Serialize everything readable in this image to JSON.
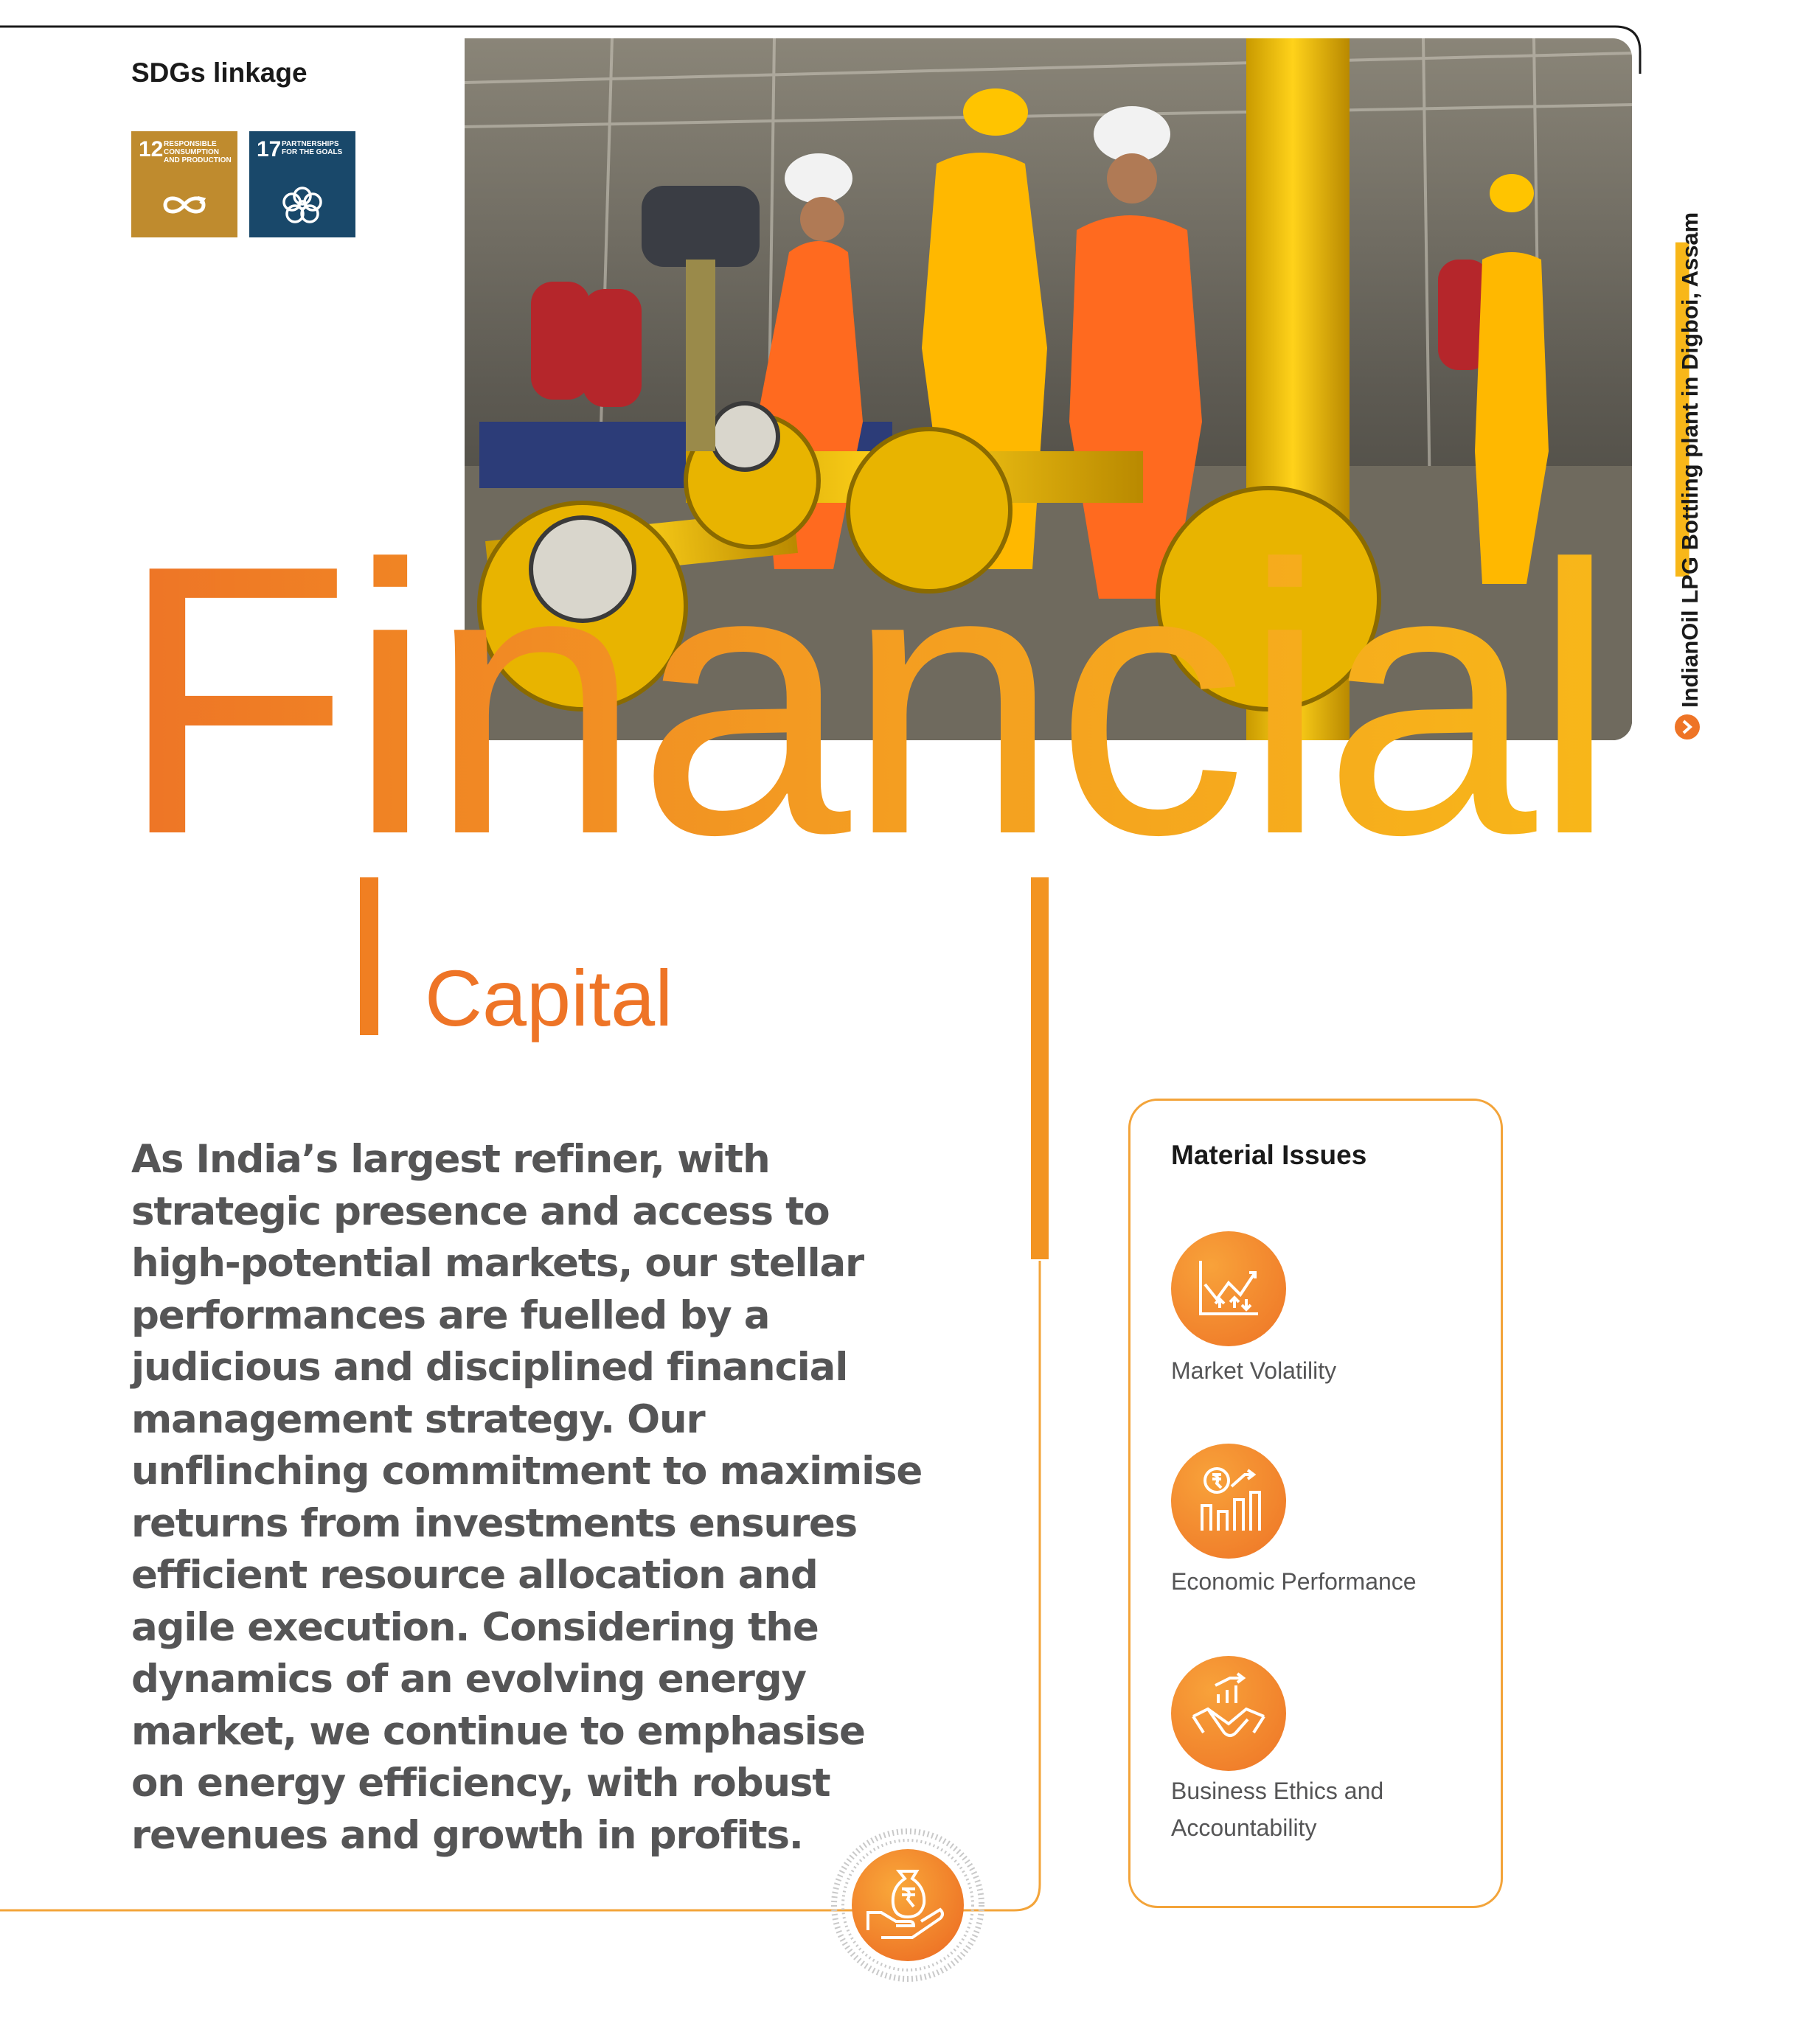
{
  "sdg": {
    "heading": "SDGs linkage",
    "goals": [
      {
        "number": "12",
        "label": "RESPONSIBLE CONSUMPTION AND PRODUCTION",
        "color": "#BF8B2E",
        "icon": "infinity-loop-icon"
      },
      {
        "number": "17",
        "label": "PARTNERSHIPS FOR THE GOALS",
        "color": "#19486A",
        "icon": "flower-rings-icon"
      }
    ]
  },
  "photo": {
    "caption": "IndianOil LPG Bottling plant in Digboi, Assam"
  },
  "title": {
    "main": "Financial",
    "sub": "Capital"
  },
  "intro": {
    "text": "As India’s largest refiner, with strategic presence and access to high-potential markets, our stellar performances are fuelled by a judicious and disciplined financial management strategy. Our unflinching commitment to maximise returns from investments ensures efficient resource allocation and agile execution. Considering the dynamics of an evolving energy market, we continue to emphasise on energy efficiency, with robust revenues and growth in profits."
  },
  "material_issues": {
    "heading": "Material Issues",
    "items": [
      {
        "label": "Market Volatility",
        "icon": "market-volatility-icon"
      },
      {
        "label": "Economic Performance",
        "icon": "economic-performance-icon"
      },
      {
        "label": "Business Ethics and Accountability",
        "icon": "handshake-growth-icon"
      }
    ]
  },
  "colors": {
    "accent_orange": "#EE7426",
    "accent_yellow": "#F8B719",
    "body_text": "#555556"
  }
}
